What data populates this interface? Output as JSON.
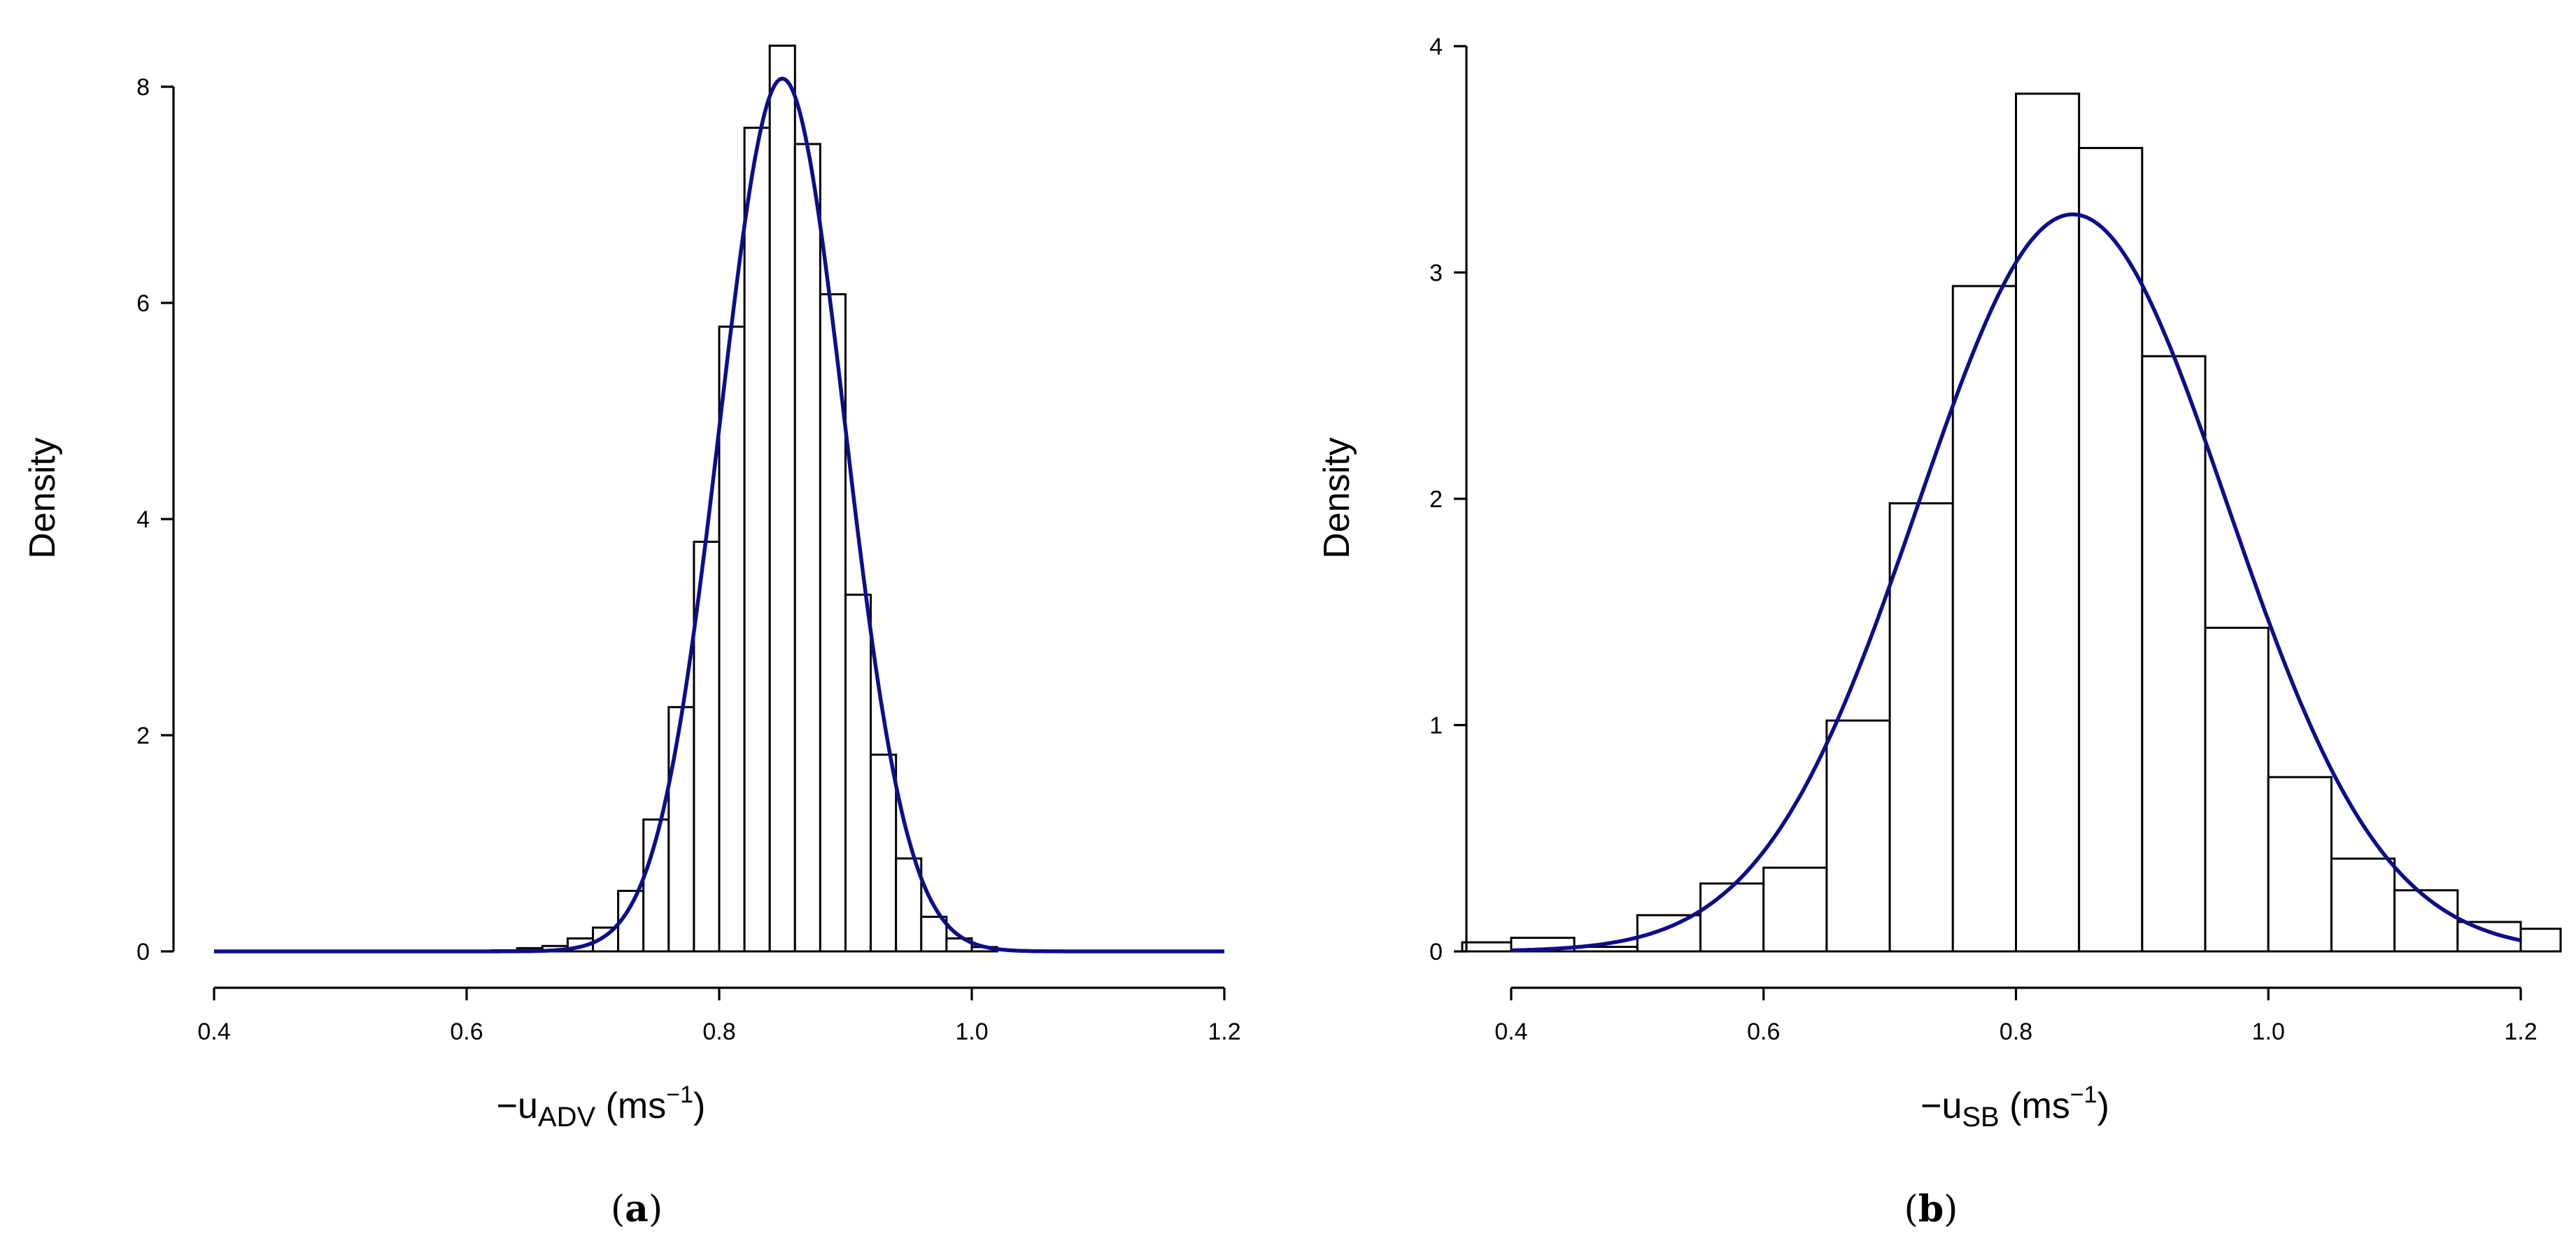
{
  "colors": {
    "curve": "#0d0d8c",
    "bar_edge": "#000000",
    "bar_fill": "#ffffff"
  },
  "chart_data": [
    {
      "type": "bar",
      "panel_label": {
        "open": "(",
        "letter": "a",
        "close": ")"
      },
      "ylabel": "Density",
      "xlabel": {
        "prefix": "−u",
        "sub": "ADV",
        "unit_open": " (ms",
        "sup": "−1",
        "unit_close": ")"
      },
      "xlim": [
        0.4,
        1.2
      ],
      "ylim": [
        0,
        8
      ],
      "x_ticks": [
        0.4,
        0.6,
        0.8,
        1.0,
        1.2
      ],
      "x_tick_labels": [
        "0.4",
        "0.6",
        "0.8",
        "1.0",
        "1.2"
      ],
      "y_ticks": [
        0,
        2,
        4,
        6,
        8
      ],
      "y_tick_labels": [
        "0",
        "2",
        "4",
        "6",
        "8"
      ],
      "bin_width": 0.02,
      "bins_start": [
        0.6,
        0.62,
        0.64,
        0.66,
        0.68,
        0.7,
        0.72,
        0.74,
        0.76,
        0.78,
        0.8,
        0.82,
        0.84,
        0.86,
        0.88,
        0.9,
        0.92,
        0.94,
        0.96,
        0.98,
        1.0
      ],
      "values": [
        0.005,
        0.01,
        0.03,
        0.05,
        0.12,
        0.22,
        0.56,
        1.22,
        2.26,
        3.79,
        5.78,
        7.62,
        8.38,
        7.47,
        6.08,
        3.3,
        1.82,
        0.86,
        0.32,
        0.12,
        0.04
      ],
      "fit": {
        "type": "normal",
        "mean": 0.85,
        "sd": 0.0494
      }
    },
    {
      "type": "bar",
      "panel_label": {
        "open": "(",
        "letter": "b",
        "close": ")"
      },
      "ylabel": "Density",
      "xlabel": {
        "prefix": "−u",
        "sub": "SB",
        "unit_open": " (ms",
        "sup": "−1",
        "unit_close": ")"
      },
      "xlim": [
        0.4,
        1.2
      ],
      "ylim": [
        0,
        4
      ],
      "x_ticks": [
        0.4,
        0.6,
        0.8,
        1.0,
        1.2
      ],
      "x_tick_labels": [
        "0.4",
        "0.6",
        "0.8",
        "1.0",
        "1.2"
      ],
      "y_ticks": [
        0,
        1,
        2,
        3,
        4
      ],
      "y_tick_labels": [
        "0",
        "1",
        "2",
        "3",
        "4"
      ],
      "bin_width": 0.05,
      "bins_start": [
        0.35,
        0.4,
        0.45,
        0.5,
        0.55,
        0.6,
        0.65,
        0.7,
        0.75,
        0.8,
        0.85,
        0.9,
        0.95,
        1.0,
        1.05,
        1.1,
        1.15,
        1.2
      ],
      "values": [
        0.04,
        0.06,
        0.02,
        0.16,
        0.3,
        0.37,
        1.02,
        1.98,
        2.94,
        3.79,
        3.55,
        2.63,
        1.43,
        0.77,
        0.41,
        0.27,
        0.13,
        0.1
      ],
      "fit": {
        "type": "normal",
        "mean": 0.845,
        "sd": 0.1225
      }
    }
  ]
}
